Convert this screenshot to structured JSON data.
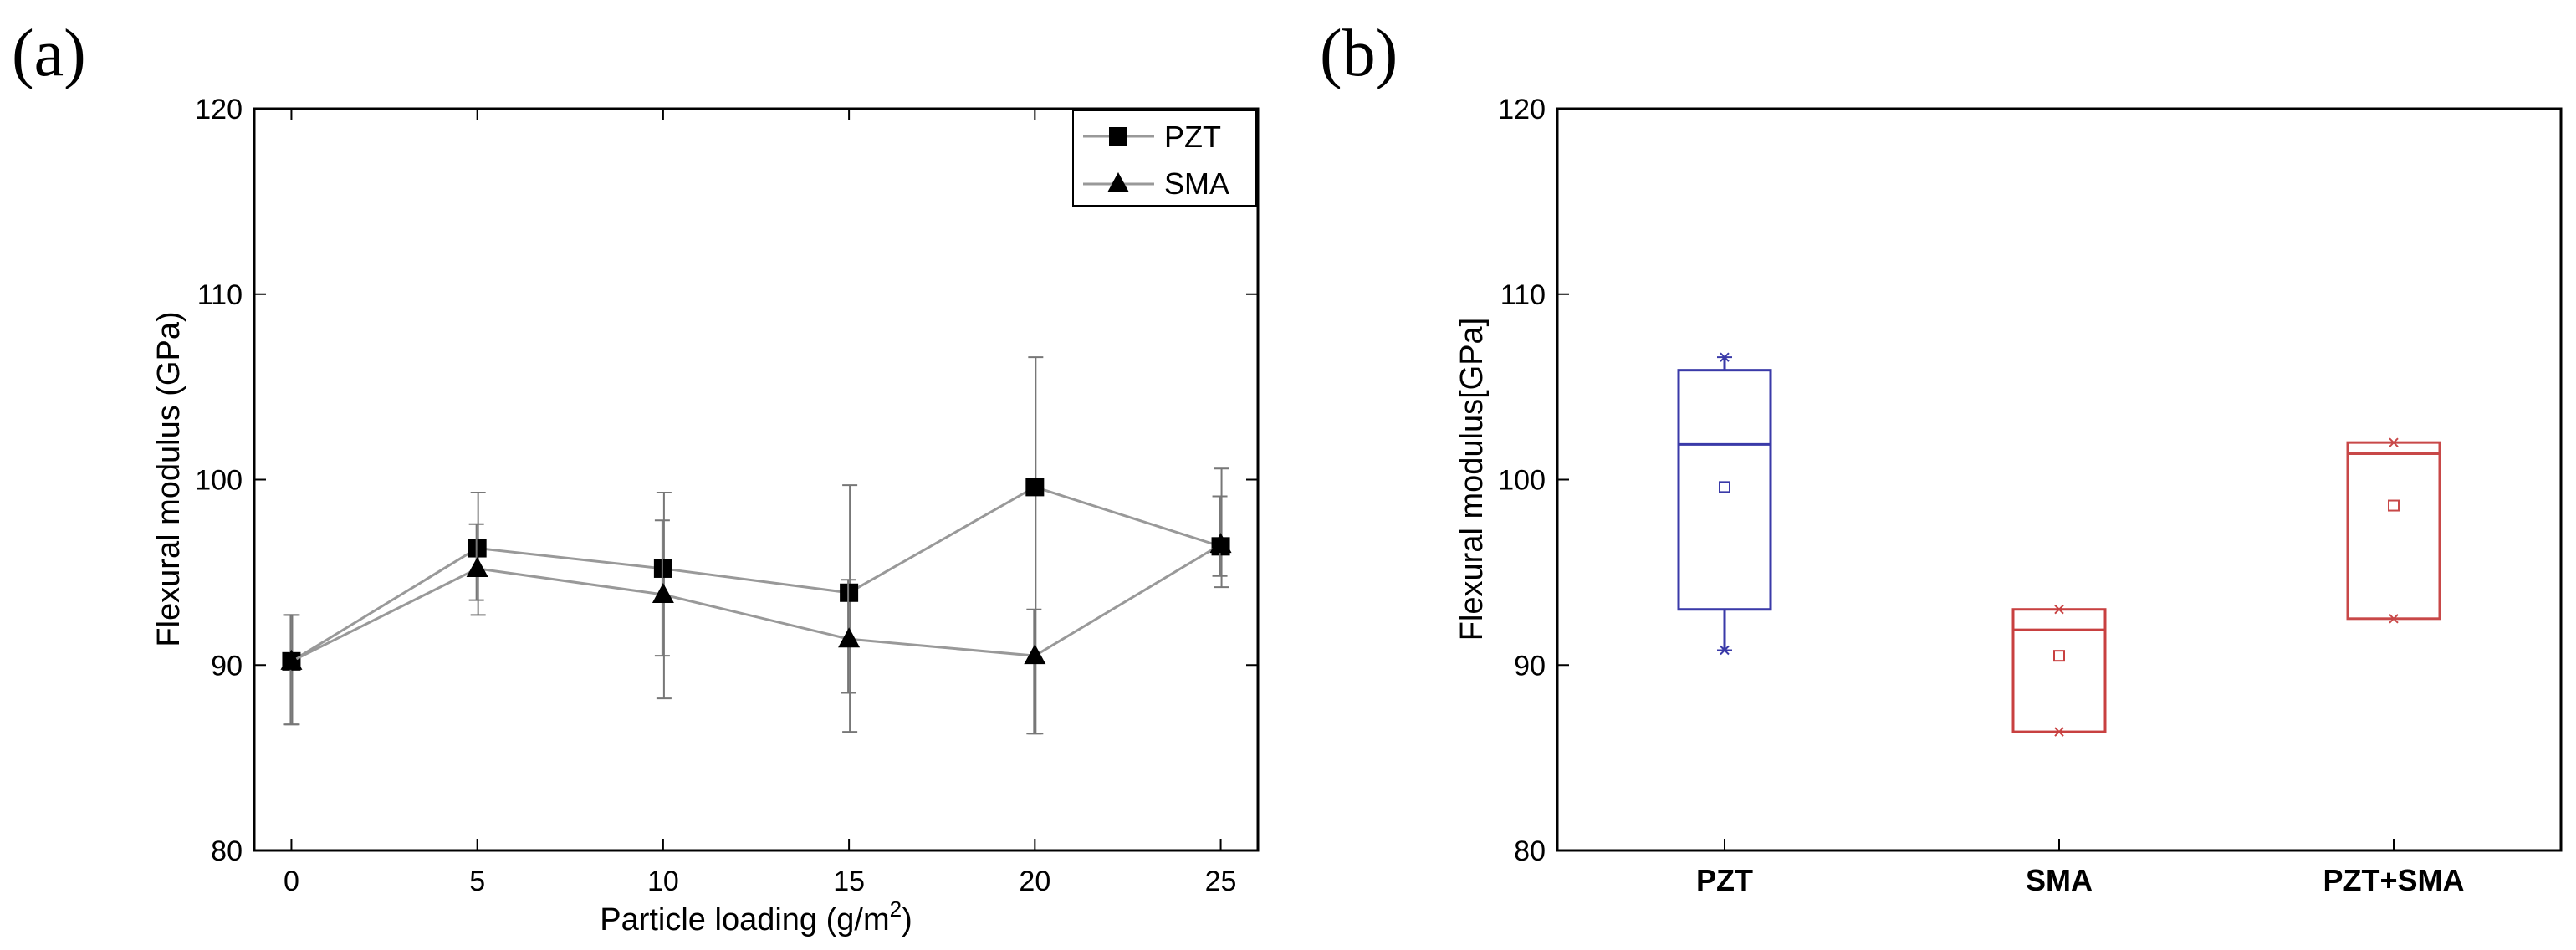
{
  "chart_data": [
    {
      "panel": "(a)",
      "type": "line",
      "xlabel": "Particle loading (g/m",
      "xlabel_sup": "2",
      "xlabel_end": ")",
      "ylabel": "Flexural modulus (GPa)",
      "xlim": [
        -1,
        26
      ],
      "ylim": [
        80,
        120
      ],
      "xticks": [
        0,
        5,
        10,
        15,
        20,
        25
      ],
      "yticks": [
        80,
        90,
        100,
        110,
        120
      ],
      "legend_position": "top-right",
      "series": [
        {
          "name": "PZT",
          "marker": "square",
          "x": [
            0,
            5,
            10,
            15,
            20,
            25
          ],
          "y": [
            90.2,
            96.3,
            95.2,
            93.9,
            99.6,
            96.4
          ],
          "err_low": [
            86.8,
            92.7,
            88.2,
            86.4,
            86.3,
            94.2
          ],
          "err_high": [
            92.7,
            99.3,
            99.3,
            99.7,
            106.6,
            100.6
          ]
        },
        {
          "name": "SMA",
          "marker": "triangle",
          "x": [
            0,
            5,
            10,
            15,
            20,
            25
          ],
          "y": [
            90.2,
            95.2,
            93.8,
            91.4,
            90.5,
            96.5
          ],
          "err_low": [
            86.8,
            93.5,
            90.5,
            88.5,
            86.3,
            94.8
          ],
          "err_high": [
            92.7,
            97.6,
            97.8,
            94.6,
            93.0,
            99.1
          ]
        }
      ]
    },
    {
      "panel": "(b)",
      "type": "box",
      "ylabel": "Flexural modulus[GPa]",
      "ylim": [
        80,
        120
      ],
      "yticks": [
        80,
        90,
        100,
        110,
        120
      ],
      "categories": [
        "PZT",
        "SMA",
        "PZT+SMA"
      ],
      "boxes": [
        {
          "category": "PZT",
          "color": "#3a3aa8",
          "min": 90.8,
          "q1": 93.0,
          "median": 101.9,
          "q3": 105.9,
          "max": 106.6,
          "mean": 99.6,
          "whiskers": true
        },
        {
          "category": "SMA",
          "color": "#c84040",
          "min": 86.4,
          "q1": 86.4,
          "median": 91.9,
          "q3": 93.0,
          "max": 93.0,
          "mean": 90.5,
          "whiskers": false
        },
        {
          "category": "PZT+SMA",
          "color": "#c84848",
          "min": 92.5,
          "q1": 92.5,
          "median": 101.4,
          "q3": 102.0,
          "max": 102.0,
          "mean": 98.6,
          "whiskers": false
        }
      ]
    }
  ]
}
